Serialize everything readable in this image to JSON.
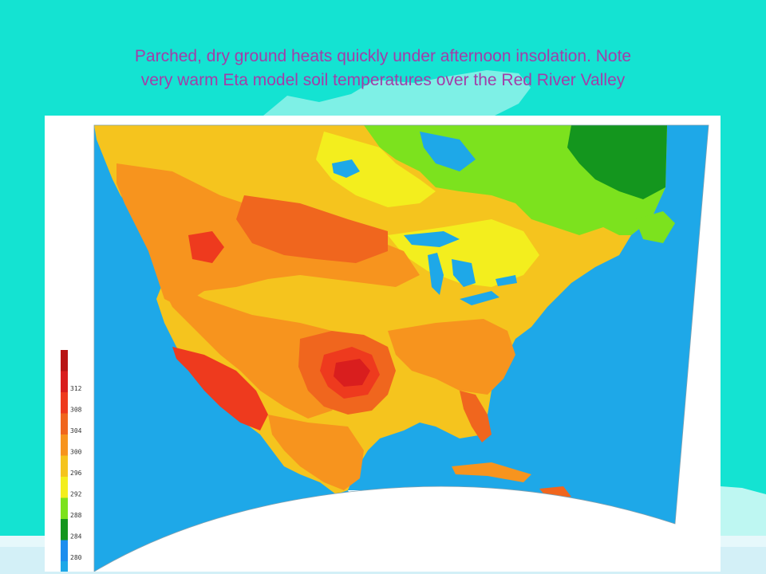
{
  "title": {
    "line1": "Parched, dry ground heats quickly under afternoon insolation.  Note",
    "line2": "very warm Eta model soil temperatures over the Red River Valley"
  },
  "legend": {
    "levels": [
      {
        "label": "",
        "color": "#B81414"
      },
      {
        "label": "312",
        "color": "#D91E1E"
      },
      {
        "label": "308",
        "color": "#EE3A1E"
      },
      {
        "label": "304",
        "color": "#F0661E"
      },
      {
        "label": "300",
        "color": "#F7941E"
      },
      {
        "label": "296",
        "color": "#F5C41E"
      },
      {
        "label": "292",
        "color": "#F3EE1E"
      },
      {
        "label": "288",
        "color": "#7CE21E"
      },
      {
        "label": "284",
        "color": "#14961E"
      },
      {
        "label": "280",
        "color": "#1E8EEE"
      },
      {
        "label": "",
        "color": "#1EA8E8"
      }
    ]
  },
  "colors": {
    "background": "#14E3D2",
    "title_text": "#A23EA8",
    "ocean": "#1EA8E8",
    "panel": "#FFFFFF"
  }
}
